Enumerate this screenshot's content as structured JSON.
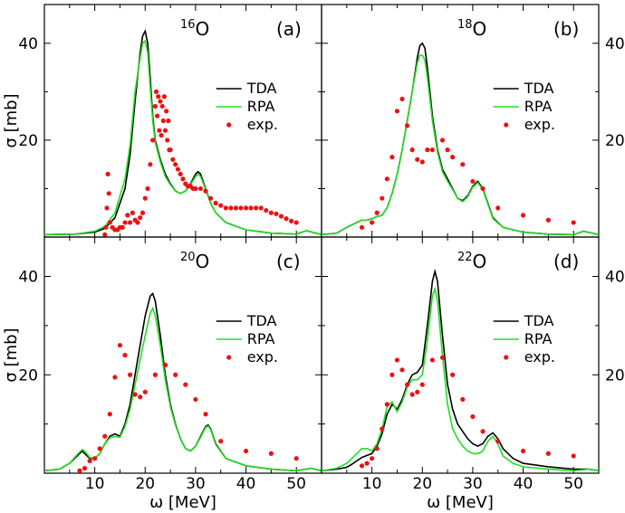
{
  "chart_data": [
    {
      "type": "line",
      "panel": "(a)",
      "nucleus_mass": "16",
      "nucleus_symbol": "O",
      "xlabel": "",
      "ylabel": "σ [mb]",
      "xlim": [
        0,
        55
      ],
      "ylim": [
        0,
        48
      ],
      "xticks": [],
      "yticks": [
        "20",
        "40"
      ],
      "ytick_side": "left",
      "legend": [
        "TDA",
        "RPA",
        "exp."
      ],
      "legend_position": "right",
      "series": [
        {
          "name": "TDA",
          "color": "#000000",
          "x": [
            0,
            6,
            10,
            12,
            14,
            16,
            17,
            18,
            19,
            19.5,
            20,
            20.5,
            21,
            21.5,
            22,
            23,
            24,
            25,
            26,
            27,
            28,
            29,
            30,
            30.5,
            31,
            32,
            33,
            34,
            36,
            40,
            45,
            50,
            52,
            55
          ],
          "y": [
            0.5,
            0.6,
            1,
            1.8,
            4,
            10,
            17,
            28,
            38,
            41.5,
            42.5,
            40,
            33,
            25,
            20,
            16,
            13,
            11,
            9.5,
            9,
            9.5,
            11,
            13,
            13.5,
            13,
            10,
            7,
            5,
            3,
            1.5,
            0.8,
            0.6,
            1.3,
            0.5
          ]
        },
        {
          "name": "RPA",
          "color": "#22dd22",
          "x": [
            0,
            6,
            10,
            12,
            14,
            16,
            17,
            18,
            19,
            19.5,
            20,
            20.5,
            21,
            21.5,
            22,
            23,
            24,
            25,
            26,
            27,
            28,
            29,
            30,
            30.5,
            31,
            32,
            33,
            34,
            36,
            40,
            45,
            50,
            52,
            55
          ],
          "y": [
            0.5,
            0.6,
            1.2,
            2.2,
            5,
            12,
            19,
            30,
            37,
            40,
            40.5,
            38,
            31,
            24,
            19.5,
            15.5,
            12.5,
            10.8,
            9.5,
            9,
            9.5,
            10.8,
            12.5,
            13,
            12.5,
            9.8,
            7,
            5,
            3,
            1.5,
            0.8,
            0.6,
            1.3,
            0.5
          ]
        },
        {
          "name": "exp.",
          "color": "#ee1111",
          "x": [
            12,
            12.2,
            12.4,
            12.6,
            12.8,
            13,
            13.5,
            14,
            14.5,
            15,
            15.5,
            16,
            16.5,
            17,
            17.5,
            18,
            18.5,
            19,
            19.5,
            20,
            20.5,
            21,
            21.5,
            22,
            22.2,
            22.4,
            22.6,
            22.8,
            23,
            23.2,
            23.4,
            23.6,
            23.8,
            24,
            24.2,
            24.4,
            24.6,
            24.8,
            25,
            25.5,
            26,
            26.5,
            27,
            27.5,
            28,
            28.5,
            29,
            29.5,
            30,
            31,
            32,
            33,
            34,
            35,
            36,
            37,
            38,
            39,
            40,
            41,
            42,
            43,
            44,
            45,
            46,
            47,
            48,
            49,
            50
          ],
          "y": [
            0.5,
            2,
            6,
            13,
            9,
            3,
            2,
            1.5,
            1.5,
            2,
            2,
            3,
            4.5,
            3,
            5,
            3.5,
            3,
            4,
            5,
            8,
            10,
            15,
            20,
            27,
            30,
            25,
            29,
            22,
            28,
            21,
            27,
            24,
            29,
            22,
            26,
            20,
            24,
            18,
            18,
            16,
            15,
            14,
            13,
            12,
            11,
            10.5,
            10.5,
            10,
            10,
            10,
            9.5,
            8,
            7,
            6.5,
            6,
            6,
            6,
            6,
            6,
            6,
            6,
            6,
            5.5,
            5,
            4.8,
            4.3,
            3.8,
            3.3,
            3
          ]
        }
      ]
    },
    {
      "type": "line",
      "panel": "(b)",
      "nucleus_mass": "18",
      "nucleus_symbol": "O",
      "xlabel": "",
      "ylabel": "",
      "xlim": [
        0,
        55
      ],
      "ylim": [
        0,
        48
      ],
      "xticks": [],
      "yticks": [
        "20",
        "40"
      ],
      "ytick_side": "right",
      "legend": [
        "TDA",
        "RPA",
        "exp."
      ],
      "legend_position": "right",
      "series": [
        {
          "name": "TDA",
          "color": "#000000",
          "x": [
            0,
            3,
            5,
            7,
            8,
            9,
            10,
            11,
            12,
            13,
            14,
            15,
            16,
            17,
            18,
            19,
            19.5,
            20,
            20.5,
            21,
            22,
            23,
            24,
            25,
            26,
            27,
            28,
            29,
            30,
            31,
            32,
            33,
            34,
            36,
            40,
            45,
            50,
            52,
            55
          ],
          "y": [
            0.5,
            0.8,
            2,
            3,
            3.5,
            3.5,
            3.8,
            4.2,
            4.5,
            6,
            9,
            13,
            18,
            24,
            30,
            37,
            39.5,
            40,
            39,
            35,
            25,
            18,
            14,
            12,
            10,
            8,
            7.5,
            8.5,
            10.5,
            11.5,
            10,
            7,
            4,
            2,
            1,
            0.6,
            0.5,
            1.2,
            0.5
          ]
        },
        {
          "name": "RPA",
          "color": "#22dd22",
          "x": [
            0,
            3,
            5,
            7,
            8,
            9,
            10,
            11,
            12,
            13,
            14,
            15,
            16,
            17,
            18,
            19,
            19.5,
            20,
            20.5,
            21,
            22,
            23,
            24,
            25,
            26,
            27,
            28,
            29,
            30,
            31,
            32,
            33,
            34,
            36,
            40,
            45,
            50,
            52,
            55
          ],
          "y": [
            0.5,
            0.8,
            2,
            3,
            3.5,
            3.5,
            3.8,
            4.2,
            4.5,
            6,
            9,
            13,
            18,
            24,
            30,
            36,
            37.5,
            37.5,
            36.5,
            33,
            24,
            17.5,
            13.5,
            11.5,
            9.8,
            8,
            7.3,
            8.3,
            10.3,
            11.2,
            9.8,
            6.8,
            3.8,
            2,
            1,
            0.6,
            0.5,
            1.2,
            0.5
          ]
        },
        {
          "name": "exp.",
          "color": "#ee1111",
          "x": [
            8,
            10,
            11,
            12,
            13,
            14,
            15,
            16,
            17,
            18,
            19,
            20,
            21,
            22,
            24,
            25,
            26,
            28,
            30,
            32,
            35,
            40,
            45,
            50
          ],
          "y": [
            2,
            3,
            5,
            8,
            12,
            16.5,
            26,
            28.5,
            23,
            18,
            16,
            15.5,
            18,
            18,
            20,
            18,
            16.5,
            15,
            11.5,
            10,
            6,
            4.5,
            3.5,
            3
          ]
        }
      ]
    },
    {
      "type": "line",
      "panel": "(c)",
      "nucleus_mass": "20",
      "nucleus_symbol": "O",
      "xlabel": "ω [MeV]",
      "ylabel": "σ [mb]",
      "xlim": [
        0,
        55
      ],
      "ylim": [
        0,
        48
      ],
      "xticks": [
        "10",
        "20",
        "30",
        "40",
        "50"
      ],
      "yticks": [
        "20",
        "40"
      ],
      "ytick_side": "left",
      "legend": [
        "TDA",
        "RPA",
        "exp."
      ],
      "legend_position": "right",
      "series": [
        {
          "name": "TDA",
          "color": "#000000",
          "x": [
            0,
            3,
            5,
            6,
            7,
            7.5,
            8,
            9,
            10,
            11,
            12,
            13,
            14,
            15,
            16,
            17,
            18,
            19,
            20,
            21,
            21.5,
            22,
            23,
            24,
            25,
            26,
            27,
            28,
            29,
            30,
            31,
            32,
            32.5,
            33,
            34,
            36,
            40,
            45,
            50,
            53,
            55
          ],
          "y": [
            0.5,
            0.8,
            2,
            3,
            4,
            4.5,
            4,
            3,
            3,
            4,
            6,
            7.5,
            8,
            7.5,
            10,
            14,
            20,
            26,
            32,
            36,
            36.5,
            35,
            28,
            20,
            14,
            10,
            7,
            5,
            4.5,
            5.5,
            7.5,
            9.5,
            9.8,
            9,
            6,
            3,
            1.5,
            0.8,
            0.5,
            1,
            0.5
          ]
        },
        {
          "name": "RPA",
          "color": "#22dd22",
          "x": [
            0,
            3,
            5,
            6,
            7,
            7.5,
            8,
            9,
            10,
            11,
            12,
            13,
            14,
            15,
            16,
            17,
            18,
            19,
            20,
            21,
            21.5,
            22,
            23,
            24,
            25,
            26,
            27,
            28,
            29,
            30,
            31,
            32,
            32.5,
            33,
            34,
            36,
            40,
            45,
            50,
            53,
            55
          ],
          "y": [
            0.5,
            0.8,
            2,
            3.2,
            4.3,
            4.8,
            4.5,
            3.2,
            3,
            4,
            6,
            7.2,
            7.5,
            7.3,
            9.5,
            13,
            18,
            23,
            28,
            32.5,
            33.5,
            32,
            26,
            19,
            13.5,
            9.8,
            7,
            5,
            4.5,
            5.5,
            7.3,
            9.3,
            9.6,
            8.8,
            5.8,
            3,
            1.5,
            0.8,
            0.5,
            1,
            0.5
          ]
        },
        {
          "name": "exp.",
          "color": "#ee1111",
          "x": [
            7,
            8,
            9,
            10,
            11,
            12,
            13,
            14,
            15,
            16,
            17,
            18,
            19,
            20,
            22,
            24,
            26,
            28,
            30,
            32,
            35,
            40,
            45,
            50
          ],
          "y": [
            0.5,
            1,
            2.5,
            3,
            5,
            7.5,
            12,
            19.5,
            26,
            24,
            20,
            16,
            15.5,
            16.5,
            20,
            22,
            20,
            18,
            15,
            12,
            6.5,
            4.5,
            4,
            3
          ]
        }
      ]
    },
    {
      "type": "line",
      "panel": "(d)",
      "nucleus_mass": "22",
      "nucleus_symbol": "O",
      "xlabel": "ω [MeV]",
      "ylabel": "",
      "xlim": [
        0,
        55
      ],
      "ylim": [
        0,
        48
      ],
      "xticks": [
        "10",
        "20",
        "30",
        "40",
        "50"
      ],
      "yticks": [
        "20",
        "40"
      ],
      "ytick_side": "right",
      "legend": [
        "TDA",
        "RPA",
        "exp."
      ],
      "legend_position": "right",
      "series": [
        {
          "name": "TDA",
          "color": "#000000",
          "x": [
            0,
            3,
            5,
            6,
            7,
            8,
            9,
            10,
            11,
            12,
            13,
            14,
            15,
            16,
            17,
            18,
            19,
            20,
            21,
            22,
            22.5,
            23,
            24,
            25,
            26,
            27,
            28,
            29,
            30,
            31,
            32,
            33,
            34,
            35,
            36,
            38,
            40,
            45,
            50,
            53,
            55
          ],
          "y": [
            0.5,
            0.8,
            1.2,
            1.8,
            2.5,
            3.2,
            3.6,
            4,
            5.5,
            8,
            12,
            14,
            13,
            15,
            18,
            20,
            20.5,
            22,
            30,
            39,
            41,
            39,
            28,
            18,
            13,
            10,
            8.5,
            7,
            6,
            5.5,
            6,
            7.5,
            8.2,
            7,
            5,
            3,
            2,
            1.3,
            0.8,
            0.8,
            0.5
          ]
        },
        {
          "name": "RPA",
          "color": "#22dd22",
          "x": [
            0,
            3,
            5,
            6,
            7,
            8,
            9,
            10,
            11,
            12,
            13,
            14,
            15,
            16,
            17,
            18,
            19,
            20,
            21,
            22,
            22.5,
            23,
            24,
            25,
            26,
            27,
            28,
            29,
            30,
            31,
            32,
            33,
            34,
            35,
            36,
            38,
            40,
            45,
            50,
            53,
            55
          ],
          "y": [
            0.5,
            1,
            2,
            3,
            4,
            5,
            5,
            4.5,
            6,
            9,
            13.5,
            14.5,
            12.5,
            14.5,
            17.5,
            19,
            19,
            20,
            27,
            36,
            37.5,
            35,
            24,
            14,
            9,
            7,
            5.5,
            4.5,
            4,
            4,
            4.5,
            6.5,
            7.5,
            6,
            3.5,
            2,
            1.3,
            0.8,
            0.5,
            0.8,
            0.5
          ]
        },
        {
          "name": "exp.",
          "color": "#ee1111",
          "x": [
            8,
            9,
            10,
            11,
            12,
            13,
            14,
            15,
            16,
            17,
            18,
            19,
            20,
            22,
            24,
            26,
            28,
            30,
            32,
            35,
            40,
            45,
            50
          ],
          "y": [
            1.5,
            2,
            3,
            5,
            9,
            14,
            20,
            23,
            21,
            18,
            16,
            16.5,
            18,
            23,
            23.5,
            20,
            15,
            11.5,
            8.5,
            6.5,
            4.5,
            4,
            3.5
          ]
        }
      ]
    }
  ]
}
